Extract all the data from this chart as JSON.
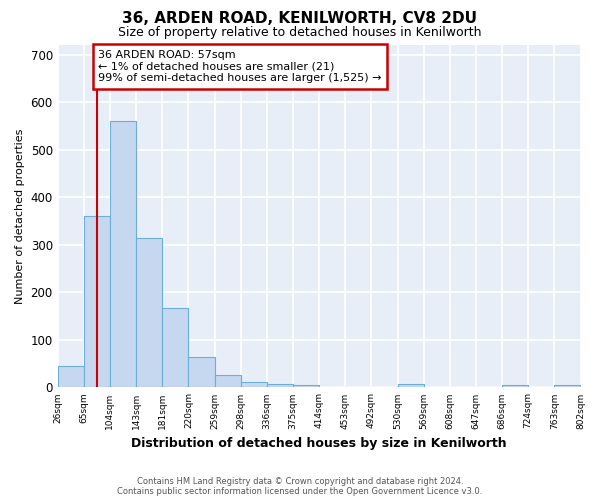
{
  "title1": "36, ARDEN ROAD, KENILWORTH, CV8 2DU",
  "title2": "Size of property relative to detached houses in Kenilworth",
  "xlabel": "Distribution of detached houses by size in Kenilworth",
  "ylabel": "Number of detached properties",
  "footer1": "Contains HM Land Registry data © Crown copyright and database right 2024.",
  "footer2": "Contains public sector information licensed under the Open Government Licence v3.0.",
  "bar_values": [
    45,
    360,
    560,
    315,
    168,
    63,
    27,
    12,
    8,
    5,
    0,
    0,
    0,
    7,
    0,
    0,
    0,
    5,
    0,
    5
  ],
  "x_labels": [
    "26sqm",
    "65sqm",
    "104sqm",
    "143sqm",
    "181sqm",
    "220sqm",
    "259sqm",
    "298sqm",
    "336sqm",
    "375sqm",
    "414sqm",
    "453sqm",
    "492sqm",
    "530sqm",
    "569sqm",
    "608sqm",
    "647sqm",
    "686sqm",
    "724sqm",
    "763sqm",
    "802sqm"
  ],
  "bar_color": "#c5d8f0",
  "bar_edge_color": "#6baed6",
  "bg_color": "#e8eef8",
  "grid_color": "#ffffff",
  "vline_color": "#cc0000",
  "vline_x": 1.0,
  "annotation_text": "36 ARDEN ROAD: 57sqm\n← 1% of detached houses are smaller (21)\n99% of semi-detached houses are larger (1,525) →",
  "annotation_box_edgecolor": "#cc0000",
  "ylim": [
    0,
    720
  ],
  "yticks": [
    0,
    100,
    200,
    300,
    400,
    500,
    600,
    700
  ],
  "title1_fontsize": 11,
  "title2_fontsize": 9,
  "ylabel_fontsize": 8,
  "xlabel_fontsize": 9,
  "footer_fontsize": 6
}
